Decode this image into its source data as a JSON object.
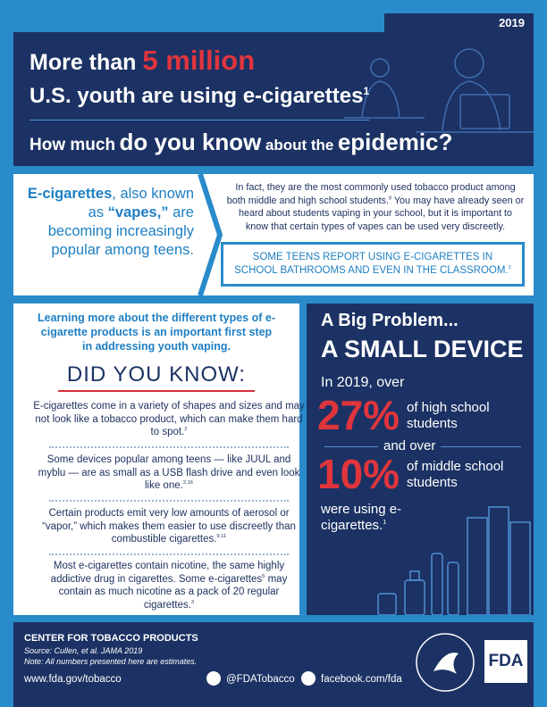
{
  "header": {
    "year": "2019",
    "title_prefix": "More than",
    "title_highlight": "5 million",
    "title_line2": "U.S. youth are using e-cigarettes",
    "title_line2_ref": "1",
    "question_1": "How much",
    "question_2": "do you know",
    "question_3": "about the",
    "question_4": "epidemic?"
  },
  "intro": {
    "lead_1": "E-cigarettes",
    "lead_2": ", also known as",
    "lead_3": "“vapes,”",
    "lead_4": "are becoming increasingly popular among teens.",
    "paragraph_a": "In fact, they are the most commonly used tobacco product among both middle and high school students.",
    "paragraph_ref": "8",
    "paragraph_b": "You may have already seen or heard about students vaping in your school, but it is important to know that certain types of vapes can be used very discreetly.",
    "callout": "SOME TEENS REPORT USING E-CIGARETTES IN SCHOOL BATHROOMS AND EVEN IN THE CLASSROOM.",
    "callout_ref": "2"
  },
  "facts_panel": {
    "intro": "Learning more about the different types of e-cigarette products is an important first step in addressing youth vaping.",
    "heading": "DID YOU KNOW:",
    "facts": [
      {
        "text": "E-cigarettes come in a variety of shapes and sizes and may not look like a tobacco product, which can make them hard to spot.",
        "ref": "2"
      },
      {
        "text": "Some devices popular among teens — like JUUL and myblu — are as small as a USB flash drive and even look like one.",
        "ref": "2,16"
      },
      {
        "text": "Certain products emit very low amounts of aerosol or “vapor,” which makes them easier to use discreetly than combustible cigarettes.",
        "ref": "9,11"
      },
      {
        "text": "Most e-cigarettes contain nicotine, the same highly addictive drug in cigarettes. Some e-cigarettes",
        "ref": "5",
        "text_2": "may contain as much nicotine as a pack of 20 regular cigarettes.",
        "ref_2": "3"
      }
    ]
  },
  "stats_panel": {
    "heading_1": "A Big Problem...",
    "heading_2": "A SMALL DEVICE",
    "lead": "In 2019, over",
    "stat_1": "27%",
    "stat_1_label": "of high school students",
    "connector": "and over",
    "stat_2": "10%",
    "stat_2_label": "of middle school students",
    "closing": "were using e-cigarettes.",
    "closing_ref": "1"
  },
  "footer": {
    "org": "CENTER FOR TOBACCO PRODUCTS",
    "source": "Source: Cullen, et al. JAMA 2019",
    "note": "Note: All numbers presented here are estimates.",
    "website": "www.fda.gov/tobacco",
    "twitter": "@FDATobacco",
    "facebook": "facebook.com/fda",
    "logo": "FDA"
  }
}
